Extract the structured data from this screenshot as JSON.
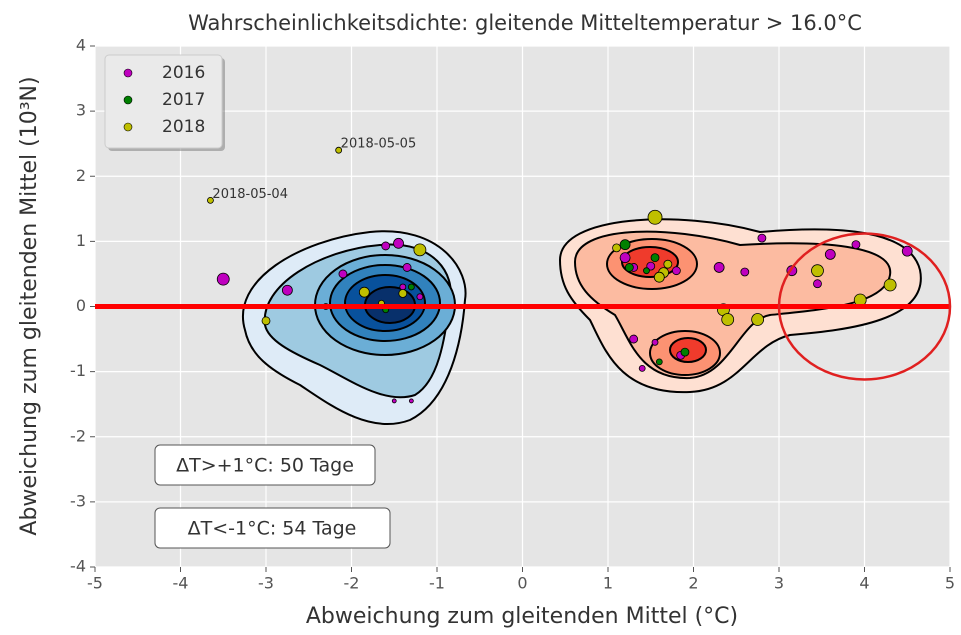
{
  "chart_data": {
    "type": "scatter",
    "title": "Wahrscheinlichkeitsdichte: gleitende Mitteltemperatur > 16.0°C",
    "x_label": "Abweichung zum gleitenden Mittel (°C)",
    "y_label": "Abweichung zum gleitenden Mittel (10³N)",
    "xlim": [
      -5,
      5
    ],
    "ylim": [
      -4,
      4
    ],
    "xticks": [
      -5,
      -4,
      -3,
      -2,
      -1,
      0,
      1,
      2,
      3,
      4,
      5
    ],
    "yticks": [
      -4,
      -3,
      -2,
      -1,
      0,
      1,
      2,
      3,
      4
    ],
    "grid": true,
    "legend": "upper left",
    "series": [
      {
        "name": "2016",
        "color": "#bf00bf",
        "x": [
          -3.5,
          -2.75,
          -1.45,
          -1.6,
          -2.1,
          -1.35,
          -1.4,
          -1.2,
          -1.5,
          -1.3,
          1.2,
          1.5,
          1.3,
          1.8,
          2.3,
          2.6,
          2.8,
          3.15,
          3.45,
          3.6,
          3.9,
          4.5,
          1.3,
          1.85,
          1.4,
          1.55
        ],
        "y": [
          0.42,
          0.25,
          0.97,
          0.93,
          0.5,
          0.6,
          0.3,
          0.15,
          -1.45,
          -1.45,
          0.75,
          0.62,
          0.6,
          0.55,
          0.6,
          0.53,
          1.05,
          0.55,
          0.35,
          0.8,
          0.95,
          0.85,
          -0.5,
          -0.75,
          -0.95,
          -0.55
        ],
        "sizes": [
          6,
          5,
          5,
          4,
          4,
          4,
          3,
          3,
          2,
          2,
          5,
          4,
          4,
          4,
          5,
          4,
          4,
          5,
          4,
          5,
          4,
          5,
          4,
          4,
          3,
          3
        ]
      },
      {
        "name": "2017",
        "color": "#008000",
        "x": [
          -2.3,
          -1.3,
          -1.6,
          1.2,
          1.25,
          1.55,
          1.6,
          1.9,
          1.45
        ],
        "y": [
          0,
          0.3,
          -0.05,
          0.95,
          0.6,
          0.75,
          -0.85,
          -0.7,
          0.55
        ],
        "sizes": [
          3,
          3,
          3,
          5,
          4,
          4,
          3,
          4,
          3
        ]
      },
      {
        "name": "2018",
        "color": "#bfbf00",
        "x": [
          -3.65,
          -2.15,
          -1.2,
          -3.0,
          -1.85,
          -1.4,
          -1.65,
          1.55,
          1.65,
          1.6,
          2.35,
          2.4,
          2.75,
          3.45,
          3.95,
          4.3,
          1.1,
          1.7
        ],
        "y": [
          1.63,
          2.4,
          0.87,
          -0.22,
          0.22,
          0.2,
          0.05,
          1.37,
          0.52,
          0.45,
          -0.05,
          -0.2,
          -0.2,
          0.55,
          0.1,
          0.33,
          0.9,
          0.65
        ],
        "sizes": [
          3,
          3,
          6,
          4,
          5,
          4,
          3,
          7,
          5,
          5,
          6,
          6,
          6,
          6,
          6,
          6,
          4,
          4
        ]
      }
    ],
    "annotations": [
      {
        "text": "2018-05-05",
        "x": -2.15,
        "y": 2.4
      },
      {
        "text": "2018-05-04",
        "x": -3.65,
        "y": 1.63
      }
    ],
    "reference_line": {
      "y": 0,
      "color": "#ff0000"
    },
    "highlight_ellipse": {
      "center": [
        4,
        0
      ],
      "radius": [
        1.0,
        1.12
      ],
      "color": "#e02020"
    },
    "text_boxes": [
      {
        "text": "ΔT>+1°C:  50 Tage",
        "color": "#e02020"
      },
      {
        "text": "ΔT<-1°C:  54 Tage",
        "color": "#2020d0"
      }
    ]
  }
}
